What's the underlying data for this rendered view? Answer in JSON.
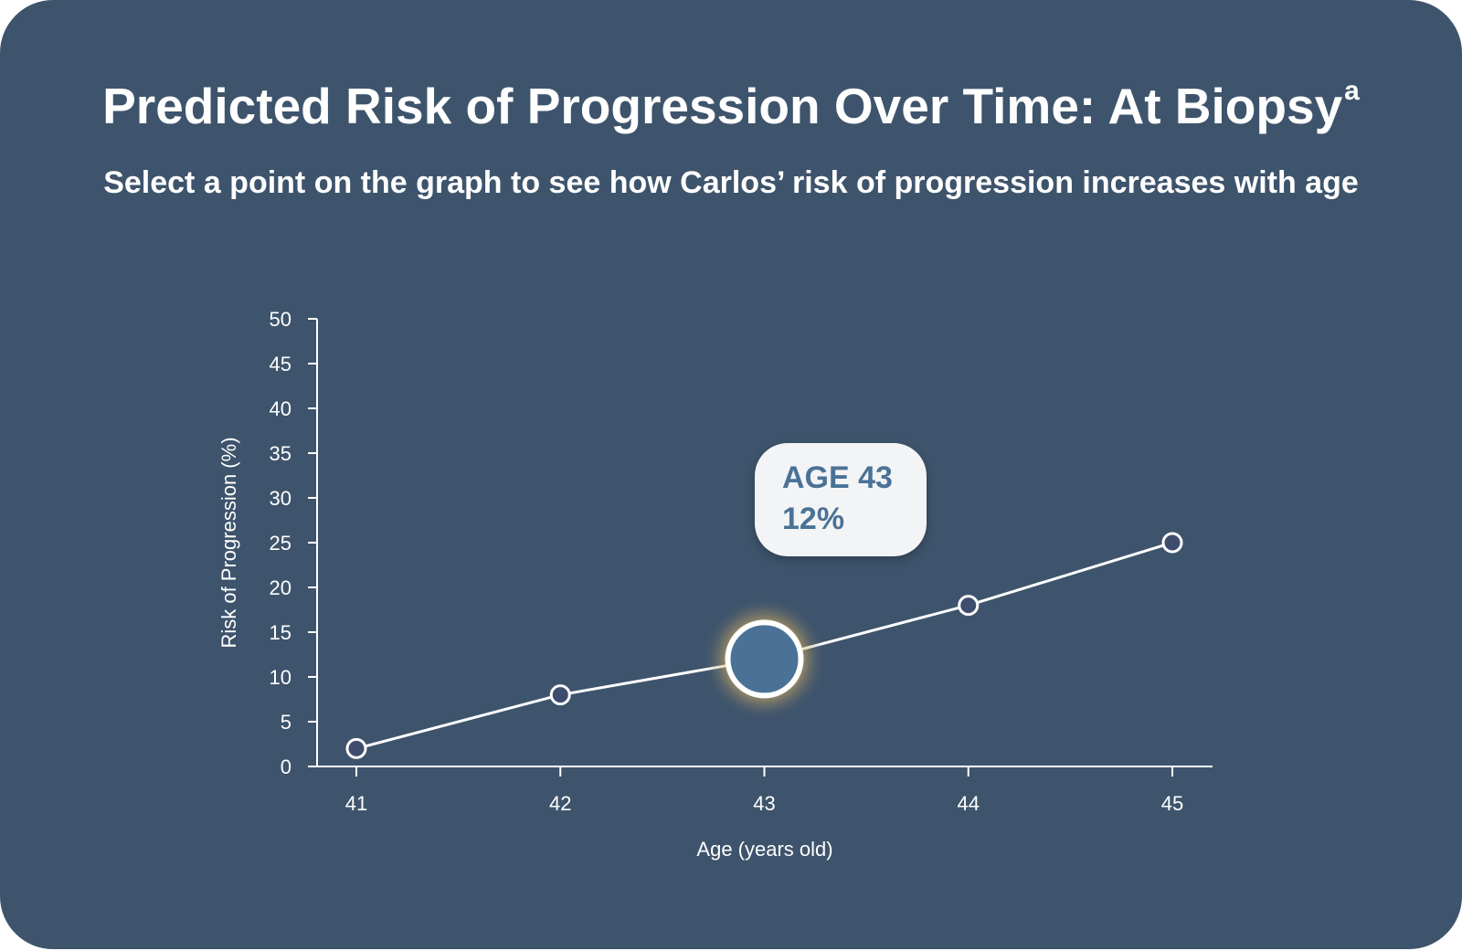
{
  "header": {
    "title": "Predicted Risk of Progression Over Time: At Biopsy",
    "title_superscript": "a",
    "subtitle": "Select a point on the graph to see how Carlos’ risk of progression increases with age"
  },
  "tooltip": {
    "age_label": "AGE 43",
    "value_label": "12%"
  },
  "colors": {
    "background": "#3e546c",
    "line": "#ffffff",
    "point_fill": "#3e4d6e",
    "selected_fill": "#4a7297",
    "glow": "#f0c860",
    "tooltip_bg": "#f3f4f6",
    "tooltip_text": "#4a7297"
  },
  "chart_data": {
    "type": "line",
    "xlabel": "Age (years old)",
    "ylabel": "Risk of Progression (%)",
    "x": [
      41,
      42,
      43,
      44,
      45
    ],
    "values": [
      2,
      8,
      12,
      18,
      25
    ],
    "xlim": [
      40.8,
      45.2
    ],
    "ylim": [
      0,
      50
    ],
    "yticks": [
      0,
      5,
      10,
      15,
      20,
      25,
      30,
      35,
      40,
      45,
      50
    ],
    "xticks": [
      41,
      42,
      43,
      44,
      45
    ],
    "selected_index": 2,
    "grid": false
  }
}
